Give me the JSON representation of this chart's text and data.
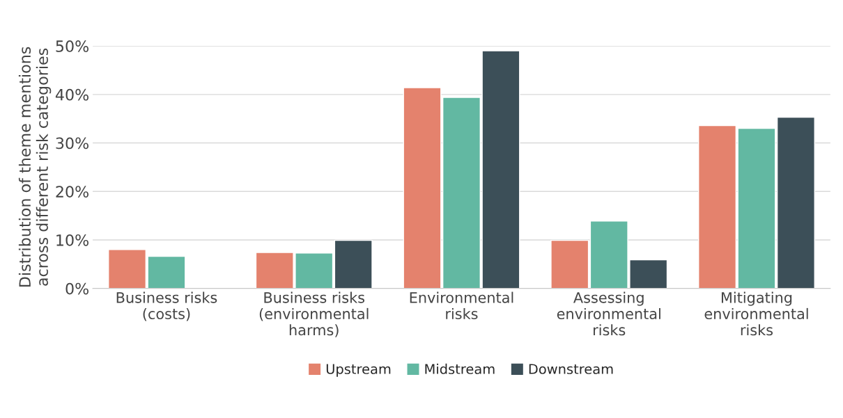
{
  "chart_data": {
    "type": "bar",
    "ylabel": "Distribution of theme mentions\nacross different risk categories",
    "categories": [
      "Business risks\n(costs)",
      "Business risks\n(environmental\nharms)",
      "Environmental\nrisks",
      "Assessing\nenvironmental\nrisks",
      "Mitigating\nenvironmental\nrisks"
    ],
    "series": [
      {
        "name": "Upstream",
        "color": "#e4826d",
        "values": [
          8.0,
          7.4,
          41.4,
          9.9,
          33.6
        ]
      },
      {
        "name": "Midstream",
        "color": "#62b8a2",
        "values": [
          6.6,
          7.3,
          39.4,
          13.9,
          33.0
        ]
      },
      {
        "name": "Downstream",
        "color": "#3c4f58",
        "values": [
          null,
          9.9,
          49.0,
          5.9,
          35.3
        ]
      }
    ],
    "ylim": [
      0,
      50
    ],
    "yticks": [
      {
        "value": 0,
        "label": "0%"
      },
      {
        "value": 10,
        "label": "10%"
      },
      {
        "value": 20,
        "label": "20%"
      },
      {
        "value": 30,
        "label": "30%"
      },
      {
        "value": 40,
        "label": "40%"
      },
      {
        "value": 50,
        "label": "50%"
      }
    ],
    "grid": "y",
    "legend": "bottom"
  }
}
